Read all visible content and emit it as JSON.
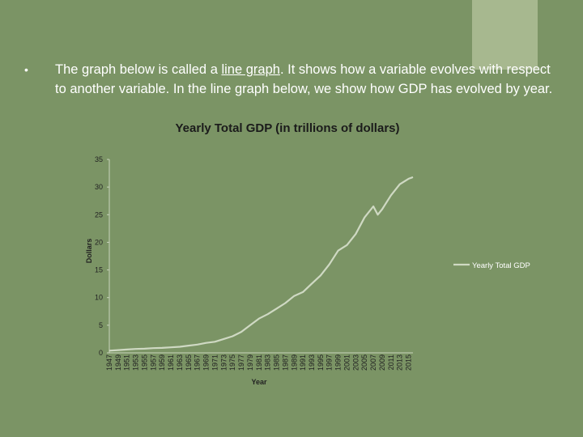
{
  "colors": {
    "background": "#7b9465",
    "accent_bar": "#a7b88f",
    "line": "#cfd9c3",
    "axis": "#c9d4bd"
  },
  "bullet": {
    "symbol": "•",
    "text_before": "The graph below is called a ",
    "link_text": "line graph",
    "text_after": ".  It shows how a variable evolves with respect to another variable.  In the line graph below, we show how GDP has evolved by year."
  },
  "chart_data": {
    "type": "line",
    "title": "Yearly Total GDP (in trillions of dollars)",
    "xlabel": "Year",
    "ylabel": "Dollars",
    "ylim": [
      0,
      35
    ],
    "yticks": [
      0,
      5,
      10,
      15,
      20,
      25,
      30,
      35
    ],
    "legend_position": "right",
    "grid": false,
    "x_tick_labels": [
      "1947",
      "1949",
      "1951",
      "1953",
      "1955",
      "1957",
      "1959",
      "1961",
      "1963",
      "1965",
      "1967",
      "1969",
      "1971",
      "1973",
      "1975",
      "1977",
      "1979",
      "1981",
      "1983",
      "1985",
      "1987",
      "1989",
      "1991",
      "1993",
      "1995",
      "1997",
      "1999",
      "2001",
      "2003",
      "2005",
      "2007",
      "2009",
      "2011",
      "2013",
      "2015"
    ],
    "series": [
      {
        "name": "Yearly Total GDP",
        "x": [
          1947,
          1949,
          1951,
          1953,
          1955,
          1957,
          1959,
          1961,
          1963,
          1965,
          1967,
          1969,
          1971,
          1973,
          1975,
          1977,
          1979,
          1981,
          1983,
          1985,
          1987,
          1989,
          1991,
          1993,
          1995,
          1997,
          1999,
          2001,
          2003,
          2005,
          2007,
          2008,
          2009,
          2011,
          2013,
          2015,
          2016
        ],
        "values": [
          0.4,
          0.5,
          0.6,
          0.7,
          0.75,
          0.85,
          0.9,
          1.0,
          1.1,
          1.3,
          1.5,
          1.8,
          2.0,
          2.5,
          3.0,
          3.8,
          5.0,
          6.2,
          7.0,
          8.0,
          9.0,
          10.3,
          11.0,
          12.5,
          14.0,
          16.0,
          18.5,
          19.5,
          21.5,
          24.5,
          26.5,
          25.0,
          26.0,
          28.5,
          30.5,
          31.5,
          31.8
        ]
      }
    ]
  }
}
